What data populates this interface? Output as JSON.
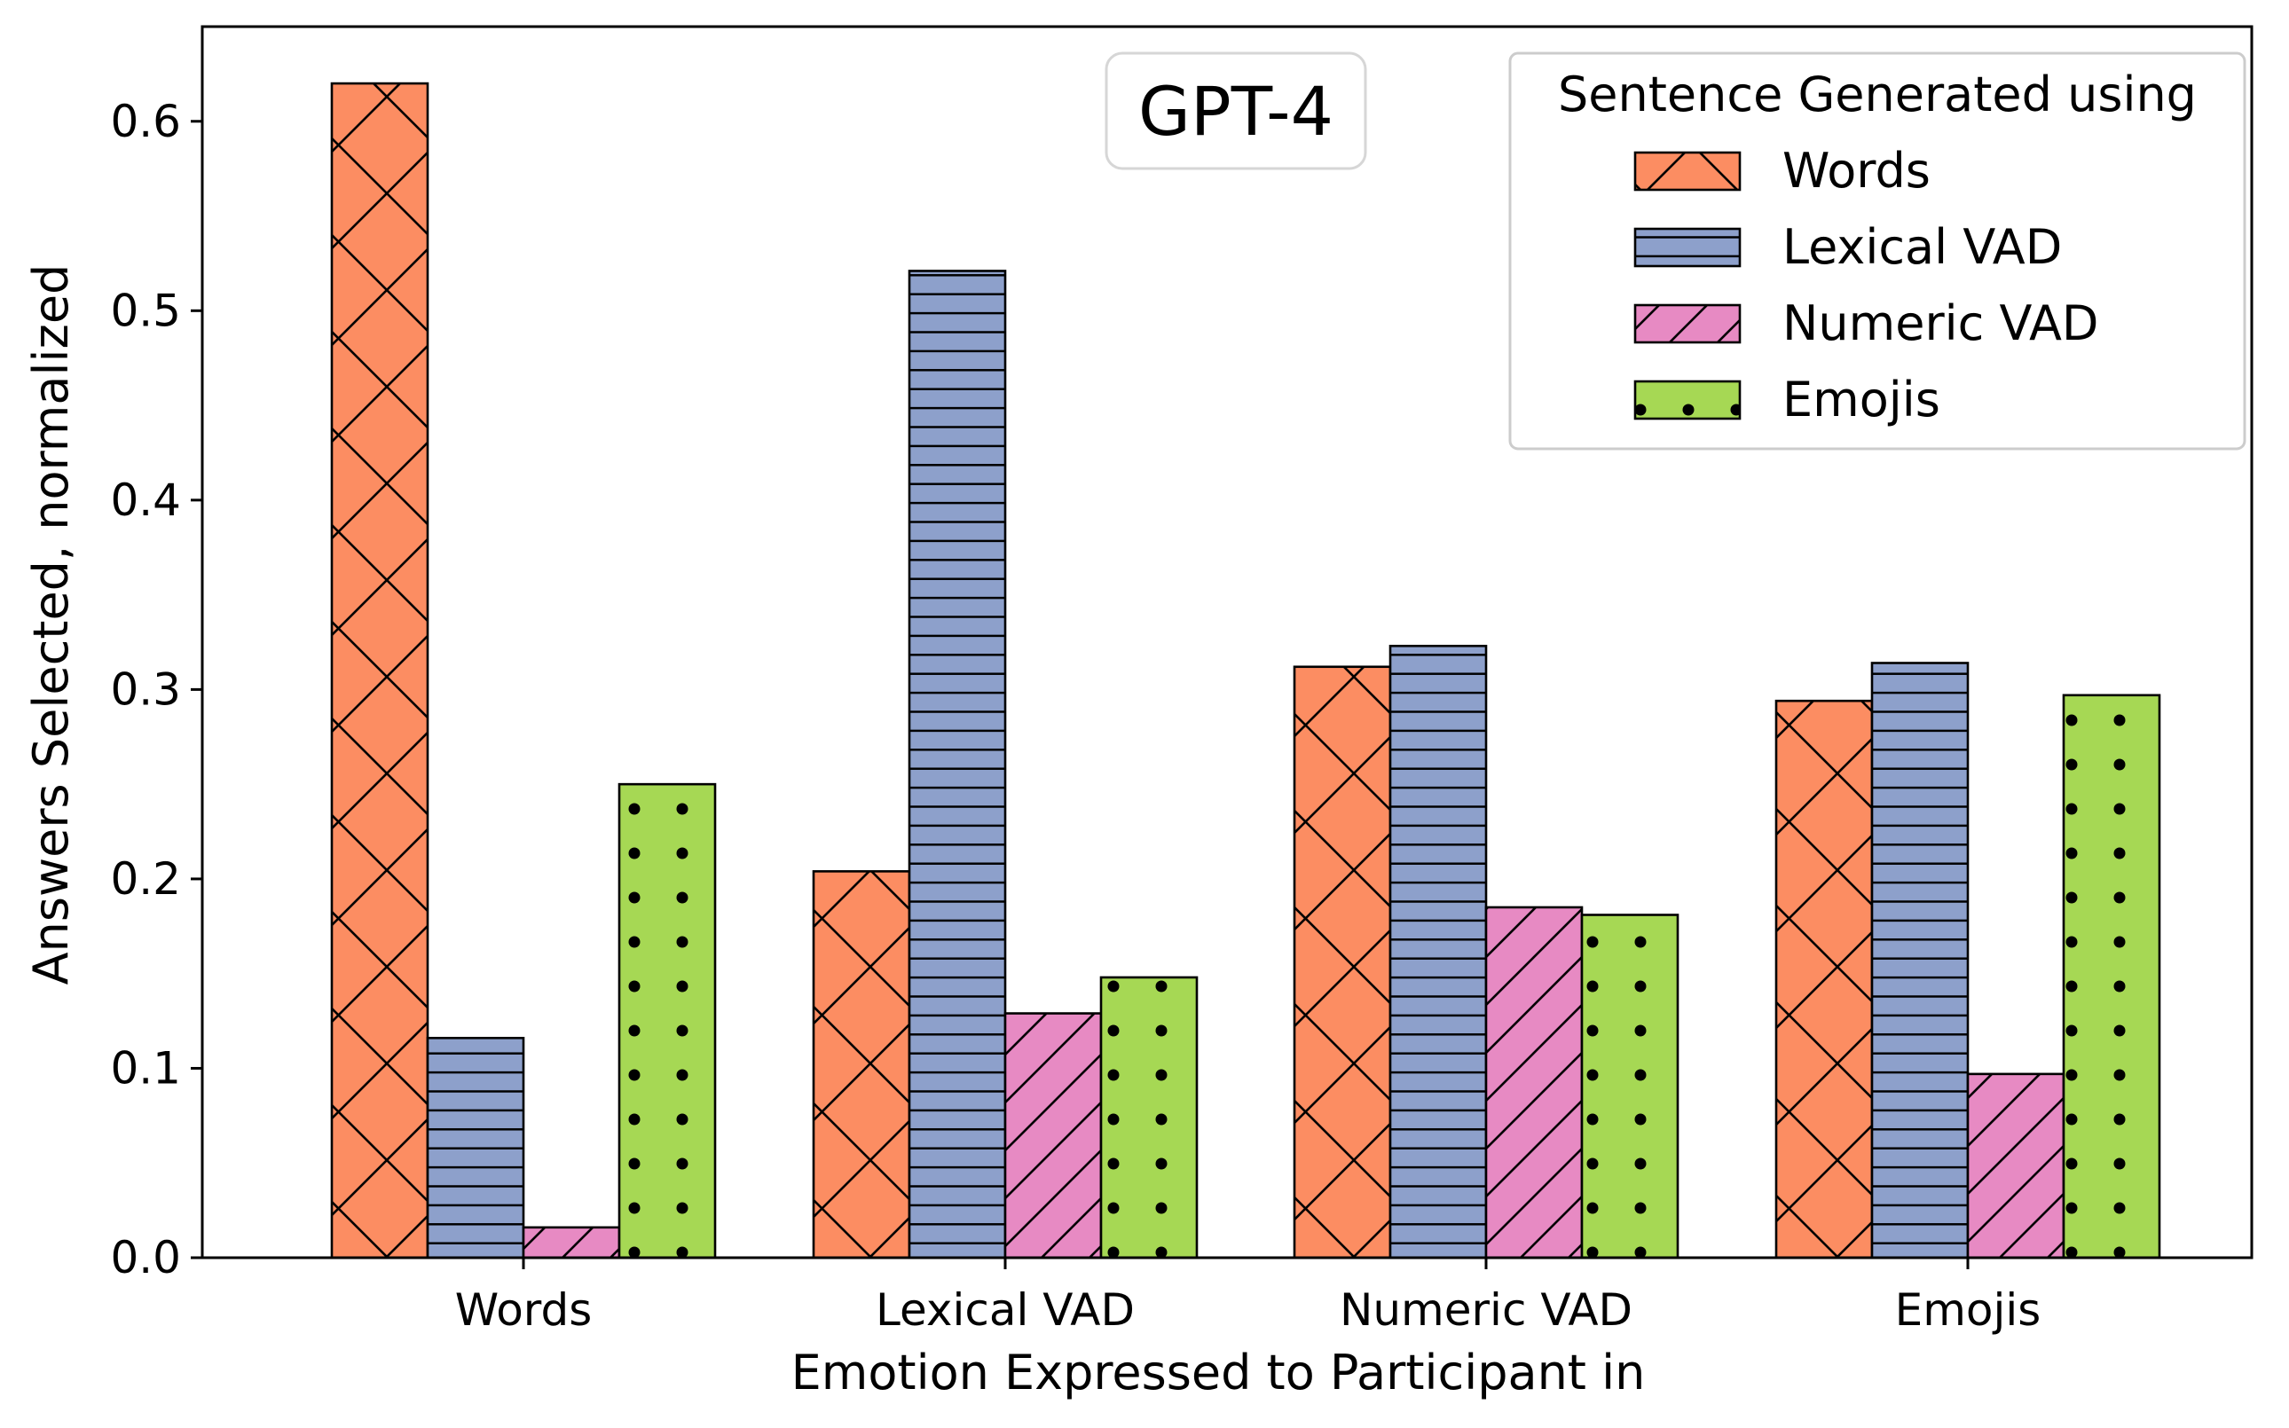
{
  "chart_data": {
    "type": "bar",
    "title": "",
    "annotation": "GPT-4",
    "xlabel": "Emotion Expressed to Participant in",
    "ylabel": "Answers Selected, normalized",
    "categories": [
      "Words",
      "Lexical VAD",
      "Numeric VAD",
      "Emojis"
    ],
    "ylim": [
      0,
      0.65
    ],
    "yticks": [
      0.0,
      0.1,
      0.2,
      0.3,
      0.4,
      0.5,
      0.6
    ],
    "ytick_labels": [
      "0.0",
      "0.1",
      "0.2",
      "0.3",
      "0.4",
      "0.5",
      "0.6"
    ],
    "legend": {
      "title": "Sentence Generated using",
      "placement": "top-right"
    },
    "grid": false,
    "series": [
      {
        "name": "Words",
        "color": "#fc8d62",
        "hatch": "crosshatch",
        "values": [
          0.62,
          0.204,
          0.312,
          0.294
        ]
      },
      {
        "name": "Lexical VAD",
        "color": "#8da0cb",
        "hatch": "horizontal",
        "values": [
          0.116,
          0.521,
          0.323,
          0.314
        ]
      },
      {
        "name": "Numeric VAD",
        "color": "#e78ac3",
        "hatch": "diagonal",
        "values": [
          0.016,
          0.129,
          0.185,
          0.097
        ]
      },
      {
        "name": "Emojis",
        "color": "#a6d854",
        "hatch": "dots",
        "values": [
          0.25,
          0.148,
          0.181,
          0.297
        ]
      }
    ]
  }
}
